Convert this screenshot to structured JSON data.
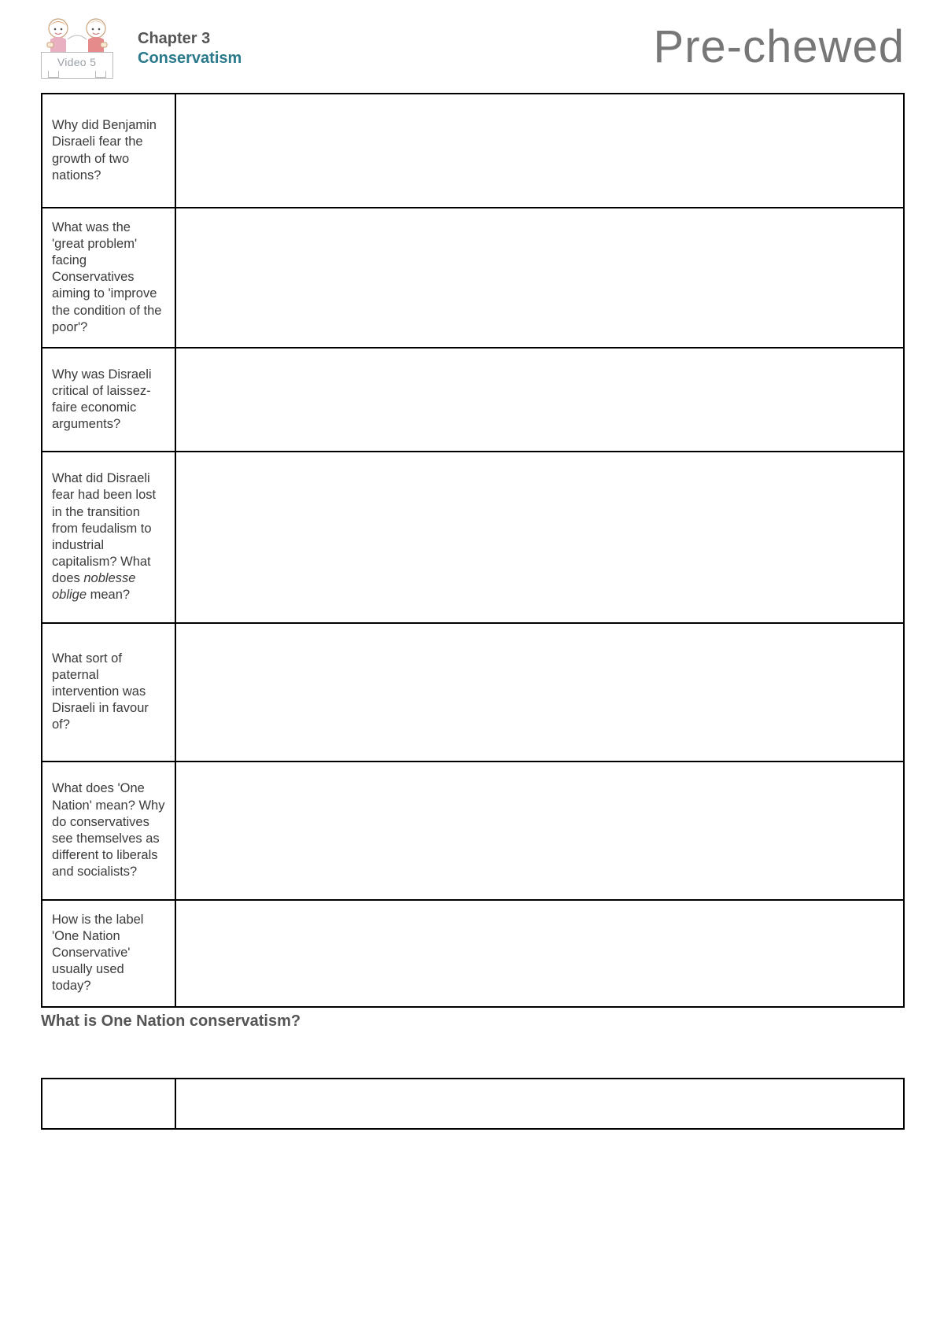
{
  "header": {
    "video_label": "Video 5",
    "chapter": "Chapter 3",
    "subject": "Conservatism",
    "brand": "Pre-chewed"
  },
  "questions": [
    "Why did Benjamin Disraeli fear the growth of two nations?",
    "What was the 'great problem' facing Conservatives aiming to 'improve the condition of the poor'?",
    "Why was Disraeli critical of laissez-faire economic arguments?",
    "What did Disraeli fear had been lost in the transition from feudalism to industrial capitalism? What does <em>noblesse oblige</em> mean?",
    "What sort of paternal intervention was Disraeli in favour of?",
    "What does 'One Nation' mean? Why do conservatives see themselves as different to liberals and socialists?",
    "How is the label 'One Nation Conservative' usually used today?"
  ],
  "section_question": "What is One Nation conservatism?",
  "colors": {
    "subject": "#2a7a8c",
    "chapter": "#555555",
    "brand": "#777777",
    "border": "#000000"
  }
}
